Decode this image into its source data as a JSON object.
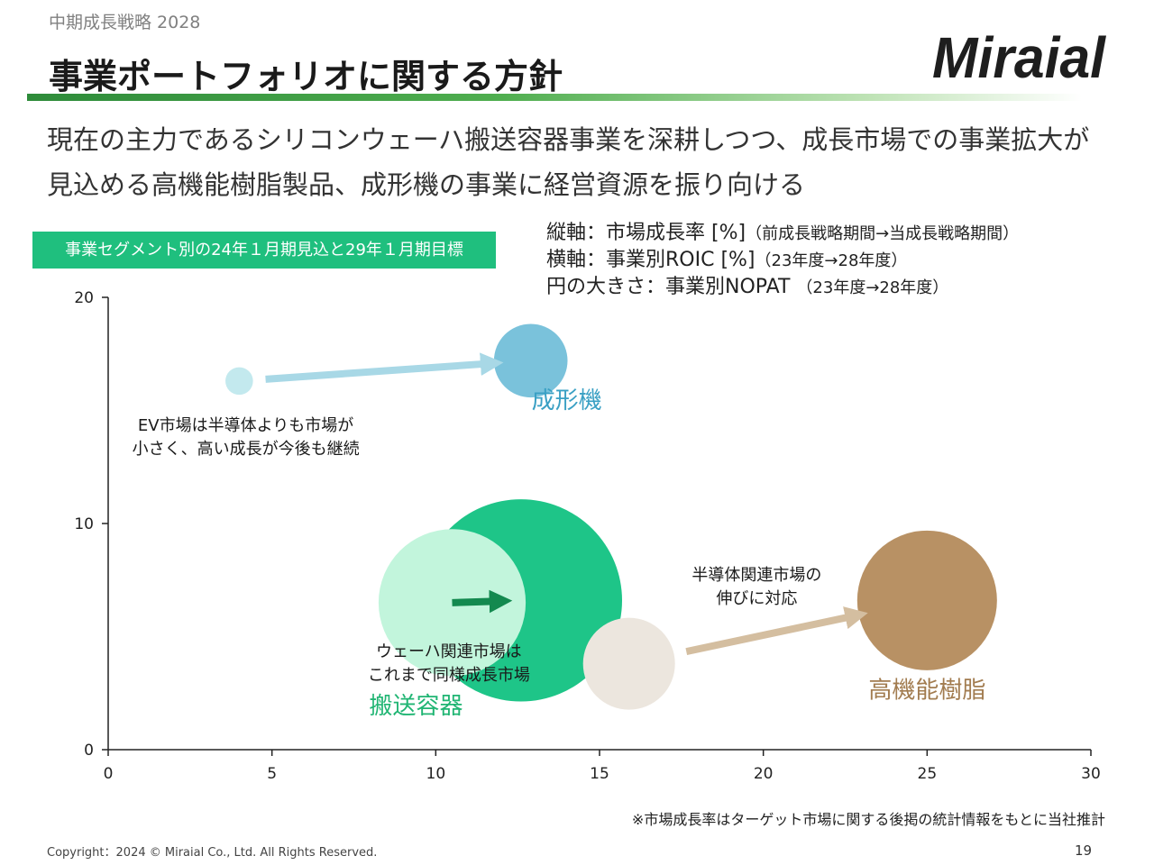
{
  "header": {
    "breadcrumb": "中期成長戦略 2028",
    "title": "事業ポートフォリオに関する方針",
    "logo_text": "Miraial"
  },
  "lead": {
    "line1": "現在の主力であるシリコンウェーハ搬送容器事業を深耕しつつ、成長市場での事業拡大が",
    "line2": "見込める高機能樹脂製品、成形機の事業に経営資源を振り向ける"
  },
  "segment_label": "事業セグメント別の24年１月期見込と29年１月期目標",
  "axis_notes": {
    "vertical_main": "縦軸：市場成長率 [%]",
    "vertical_sub": "（前成長戦略期間→当成長戦略期間）",
    "horizontal_main": "横軸：事業別ROIC [%]",
    "horizontal_sub": "（23年度→28年度）",
    "size_main": "円の大きさ：事業別NOPAT",
    "size_sub": "（23年度→28年度）"
  },
  "chart_data": {
    "type": "scatter",
    "x_ticks": [
      "0",
      "5",
      "10",
      "15",
      "20",
      "25",
      "30"
    ],
    "y_ticks": [
      "0",
      "10",
      "20"
    ],
    "xlim": [
      0,
      30
    ],
    "ylim": [
      0,
      20
    ],
    "series": [
      {
        "name": "成形機",
        "color_from": "#c3e9ee",
        "color_to": "#7ac2db",
        "arrow_color": "#a8d8e6",
        "label_color": "#3aa0c4",
        "from": {
          "x": 4.0,
          "y": 16.3,
          "nopat": 1.5
        },
        "to": {
          "x": 12.9,
          "y": 17.2,
          "nopat": 4.0
        },
        "label": {
          "x": 14.0,
          "y": 15.1
        },
        "annotation": [
          "EV市場は半導体よりも市場が",
          "小さく、高い成長が今後も継続"
        ],
        "annotation_pos": {
          "x": 4.2,
          "y": 14.1
        }
      },
      {
        "name": "搬送容器",
        "color_from": "#c2f5dc",
        "color_to": "#1ec588",
        "arrow_color": "#13894f",
        "label_color": "#20b573",
        "from": {
          "x": 10.5,
          "y": 6.5,
          "nopat": 8.0
        },
        "to": {
          "x": 12.6,
          "y": 6.6,
          "nopat": 11.0
        },
        "label": {
          "x": 9.4,
          "y": 1.6
        },
        "annotation": [
          "ウェーハ関連市場は",
          "これまで同様成長市場"
        ],
        "annotation_pos": {
          "x": 10.4,
          "y": 4.1
        }
      },
      {
        "name": "高機能樹脂",
        "color_from": "#ece6de",
        "color_to": "#b89164",
        "arrow_color": "#d4bea0",
        "label_color": "#a27c50",
        "from": {
          "x": 15.9,
          "y": 3.8,
          "nopat": 5.0
        },
        "to": {
          "x": 25.0,
          "y": 6.6,
          "nopat": 7.6
        },
        "label": {
          "x": 25.0,
          "y": 2.3
        },
        "annotation": [
          "半導体関連市場の",
          "伸びに対応"
        ],
        "annotation_pos": {
          "x": 19.8,
          "y": 7.5
        }
      }
    ]
  },
  "footnote": "※市場成長率はターゲット市場に関する後掲の統計情報をもとに当社推計",
  "copyright": "Copyright：2024 © Miraial Co., Ltd. All Rights Reserved.",
  "page_number": "19"
}
